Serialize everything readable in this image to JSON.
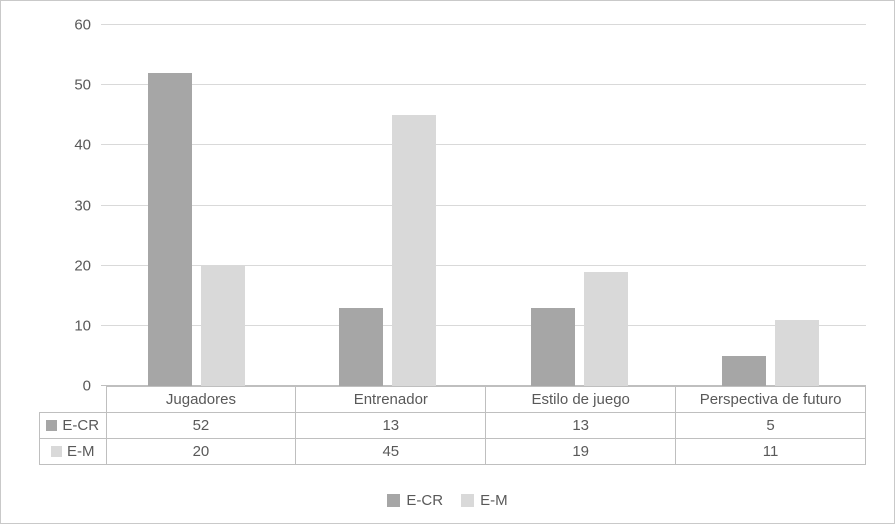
{
  "chart_data": {
    "type": "bar",
    "categories": [
      "Jugadores",
      "Entrenador",
      "Estilo de juego",
      "Perspectiva de futuro"
    ],
    "series": [
      {
        "name": "E-CR",
        "color": "#a6a6a6",
        "values": [
          52,
          13,
          13,
          5
        ]
      },
      {
        "name": "E-M",
        "color": "#d9d9d9",
        "values": [
          20,
          45,
          19,
          11
        ]
      }
    ],
    "title": "",
    "xlabel": "",
    "ylabel": "",
    "ylim": [
      0,
      60
    ],
    "ytick_step": 10,
    "grid": true,
    "legend_position": "bottom",
    "data_table_shown": true
  }
}
